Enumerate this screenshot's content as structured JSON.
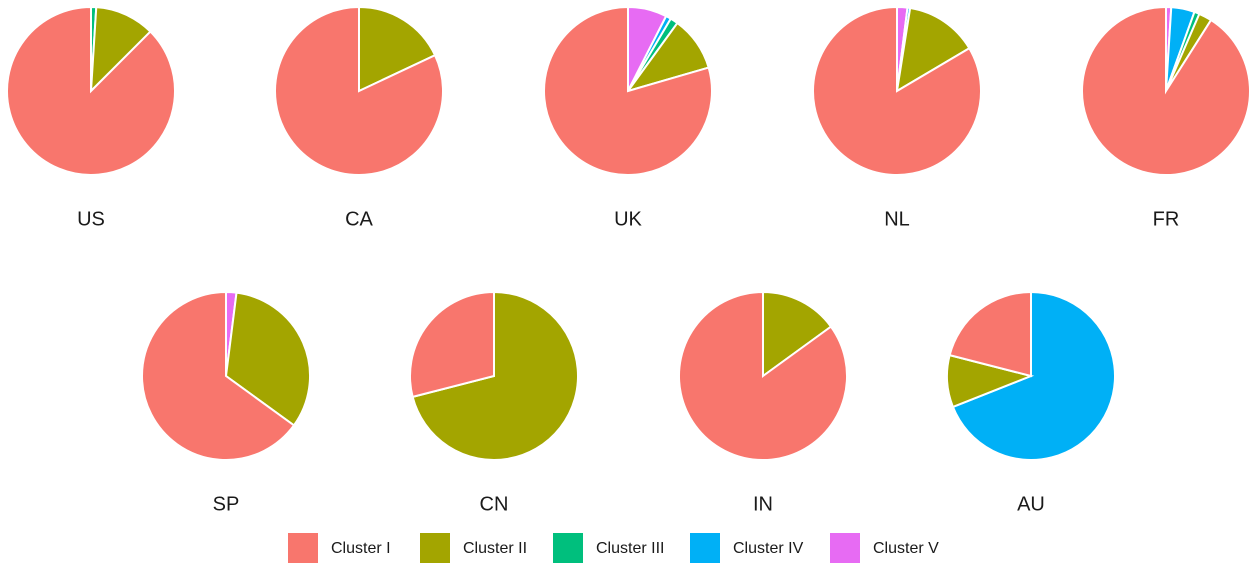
{
  "chart_data": [
    {
      "type": "pie",
      "title": "US",
      "values": [
        87.5,
        11.5,
        1,
        0,
        0
      ]
    },
    {
      "type": "pie",
      "title": "CA",
      "values": [
        82,
        18,
        0,
        0,
        0
      ]
    },
    {
      "type": "pie",
      "title": "UK",
      "values": [
        79.5,
        10.5,
        1.5,
        1,
        7.5
      ]
    },
    {
      "type": "pie",
      "title": "NL",
      "values": [
        83.5,
        14,
        0,
        0.5,
        2
      ]
    },
    {
      "type": "pie",
      "title": "FR",
      "values": [
        91,
        2.5,
        1,
        4.5,
        1
      ]
    },
    {
      "type": "pie",
      "title": "SP",
      "values": [
        65,
        33,
        0,
        0,
        2
      ]
    },
    {
      "type": "pie",
      "title": "CN",
      "values": [
        29,
        71,
        0,
        0,
        0
      ]
    },
    {
      "type": "pie",
      "title": "IN",
      "values": [
        85,
        15,
        0,
        0,
        0
      ]
    },
    {
      "type": "pie",
      "title": "AU",
      "values": [
        21,
        10,
        0,
        69,
        0
      ]
    }
  ],
  "legend": {
    "labels": [
      "Cluster I",
      "Cluster II",
      "Cluster III",
      "Cluster IV",
      "Cluster V"
    ],
    "colors": [
      "#f8766d",
      "#a3a500",
      "#00bf7d",
      "#00b0f6",
      "#e76bf3"
    ]
  }
}
